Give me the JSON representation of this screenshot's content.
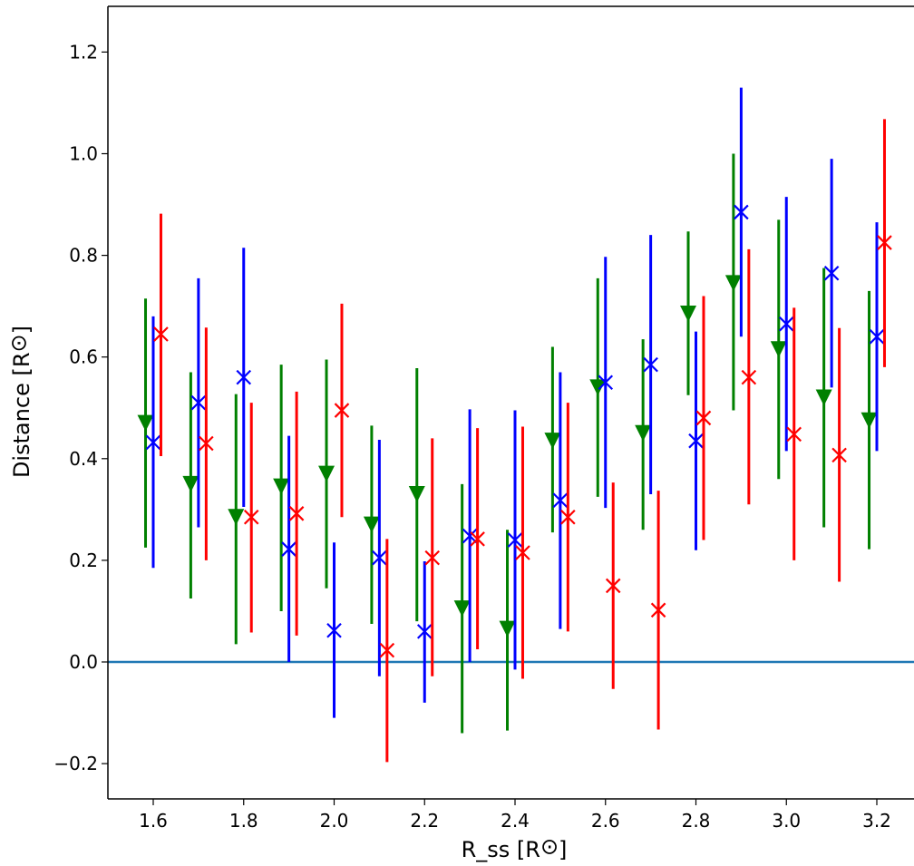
{
  "chart_data": {
    "type": "scatter",
    "xlabel": "R_ss [R",
    "xlabel_unit": "⊙",
    "xlabel_close": "]",
    "ylabel": "Distance [R",
    "ylabel_unit": "⊙",
    "ylabel_close": "]",
    "xlim": [
      1.5,
      3.28
    ],
    "ylim": [
      -0.27,
      1.29
    ],
    "xticks": [
      1.6,
      1.8,
      2.0,
      2.2,
      2.4,
      2.6,
      2.8,
      3.0,
      3.2
    ],
    "xtick_labels": [
      "1.6",
      "1.8",
      "2.0",
      "2.2",
      "2.4",
      "2.6",
      "2.8",
      "3.0",
      "3.2"
    ],
    "yticks": [
      -0.2,
      0.0,
      0.2,
      0.4,
      0.6,
      0.8,
      1.0,
      1.2
    ],
    "ytick_labels": [
      "−0.2",
      "0.0",
      "0.2",
      "0.4",
      "0.6",
      "0.8",
      "1.0",
      "1.2"
    ],
    "grid": false,
    "hline": {
      "y": 0.0,
      "color": "#1f77b4"
    },
    "series": [
      {
        "color": "#008000",
        "marker": "triangle-down",
        "points": [
          {
            "x": 1.583,
            "y": 0.47,
            "lo": 0.225,
            "hi": 0.715
          },
          {
            "x": 1.683,
            "y": 0.35,
            "lo": 0.125,
            "hi": 0.57
          },
          {
            "x": 1.783,
            "y": 0.285,
            "lo": 0.035,
            "hi": 0.527
          },
          {
            "x": 1.883,
            "y": 0.345,
            "lo": 0.1,
            "hi": 0.585
          },
          {
            "x": 1.983,
            "y": 0.37,
            "lo": 0.145,
            "hi": 0.595
          },
          {
            "x": 2.083,
            "y": 0.27,
            "lo": 0.075,
            "hi": 0.465
          },
          {
            "x": 2.183,
            "y": 0.33,
            "lo": 0.08,
            "hi": 0.578
          },
          {
            "x": 2.283,
            "y": 0.105,
            "lo": -0.14,
            "hi": 0.35
          },
          {
            "x": 2.383,
            "y": 0.065,
            "lo": -0.135,
            "hi": 0.26
          },
          {
            "x": 2.483,
            "y": 0.435,
            "lo": 0.255,
            "hi": 0.62
          },
          {
            "x": 2.583,
            "y": 0.54,
            "lo": 0.325,
            "hi": 0.755
          },
          {
            "x": 2.683,
            "y": 0.45,
            "lo": 0.26,
            "hi": 0.635
          },
          {
            "x": 2.783,
            "y": 0.685,
            "lo": 0.525,
            "hi": 0.847
          },
          {
            "x": 2.883,
            "y": 0.745,
            "lo": 0.495,
            "hi": 1.0
          },
          {
            "x": 2.983,
            "y": 0.615,
            "lo": 0.36,
            "hi": 0.87
          },
          {
            "x": 3.083,
            "y": 0.52,
            "lo": 0.265,
            "hi": 0.775
          },
          {
            "x": 3.183,
            "y": 0.475,
            "lo": 0.222,
            "hi": 0.73
          }
        ]
      },
      {
        "color": "#0000ff",
        "marker": "x",
        "points": [
          {
            "x": 1.6,
            "y": 0.432,
            "lo": 0.185,
            "hi": 0.68
          },
          {
            "x": 1.7,
            "y": 0.51,
            "lo": 0.265,
            "hi": 0.755
          },
          {
            "x": 1.8,
            "y": 0.56,
            "lo": 0.305,
            "hi": 0.815
          },
          {
            "x": 1.9,
            "y": 0.222,
            "lo": 0.0,
            "hi": 0.445
          },
          {
            "x": 2.0,
            "y": 0.062,
            "lo": -0.11,
            "hi": 0.235
          },
          {
            "x": 2.1,
            "y": 0.205,
            "lo": -0.028,
            "hi": 0.437
          },
          {
            "x": 2.2,
            "y": 0.06,
            "lo": -0.08,
            "hi": 0.198
          },
          {
            "x": 2.3,
            "y": 0.248,
            "lo": 0.0,
            "hi": 0.497
          },
          {
            "x": 2.4,
            "y": 0.24,
            "lo": -0.015,
            "hi": 0.495
          },
          {
            "x": 2.5,
            "y": 0.318,
            "lo": 0.065,
            "hi": 0.57
          },
          {
            "x": 2.6,
            "y": 0.55,
            "lo": 0.303,
            "hi": 0.797
          },
          {
            "x": 2.7,
            "y": 0.585,
            "lo": 0.33,
            "hi": 0.84
          },
          {
            "x": 2.8,
            "y": 0.435,
            "lo": 0.22,
            "hi": 0.65
          },
          {
            "x": 2.9,
            "y": 0.885,
            "lo": 0.64,
            "hi": 1.13
          },
          {
            "x": 3.0,
            "y": 0.665,
            "lo": 0.415,
            "hi": 0.915
          },
          {
            "x": 3.1,
            "y": 0.765,
            "lo": 0.54,
            "hi": 0.99
          },
          {
            "x": 3.2,
            "y": 0.64,
            "lo": 0.415,
            "hi": 0.865
          }
        ]
      },
      {
        "color": "#ff0000",
        "marker": "x",
        "points": [
          {
            "x": 1.617,
            "y": 0.645,
            "lo": 0.405,
            "hi": 0.882
          },
          {
            "x": 1.717,
            "y": 0.43,
            "lo": 0.2,
            "hi": 0.658
          },
          {
            "x": 1.817,
            "y": 0.285,
            "lo": 0.058,
            "hi": 0.51
          },
          {
            "x": 1.917,
            "y": 0.292,
            "lo": 0.052,
            "hi": 0.532
          },
          {
            "x": 2.017,
            "y": 0.495,
            "lo": 0.285,
            "hi": 0.705
          },
          {
            "x": 2.117,
            "y": 0.023,
            "lo": -0.197,
            "hi": 0.242
          },
          {
            "x": 2.217,
            "y": 0.205,
            "lo": -0.028,
            "hi": 0.44
          },
          {
            "x": 2.317,
            "y": 0.242,
            "lo": 0.025,
            "hi": 0.46
          },
          {
            "x": 2.417,
            "y": 0.215,
            "lo": -0.033,
            "hi": 0.463
          },
          {
            "x": 2.517,
            "y": 0.285,
            "lo": 0.06,
            "hi": 0.51
          },
          {
            "x": 2.617,
            "y": 0.15,
            "lo": -0.053,
            "hi": 0.353
          },
          {
            "x": 2.717,
            "y": 0.102,
            "lo": -0.133,
            "hi": 0.337
          },
          {
            "x": 2.817,
            "y": 0.48,
            "lo": 0.24,
            "hi": 0.72
          },
          {
            "x": 2.917,
            "y": 0.56,
            "lo": 0.31,
            "hi": 0.812
          },
          {
            "x": 3.017,
            "y": 0.448,
            "lo": 0.2,
            "hi": 0.697
          },
          {
            "x": 3.117,
            "y": 0.407,
            "lo": 0.158,
            "hi": 0.657
          },
          {
            "x": 3.217,
            "y": 0.825,
            "lo": 0.58,
            "hi": 1.068
          }
        ]
      }
    ]
  }
}
